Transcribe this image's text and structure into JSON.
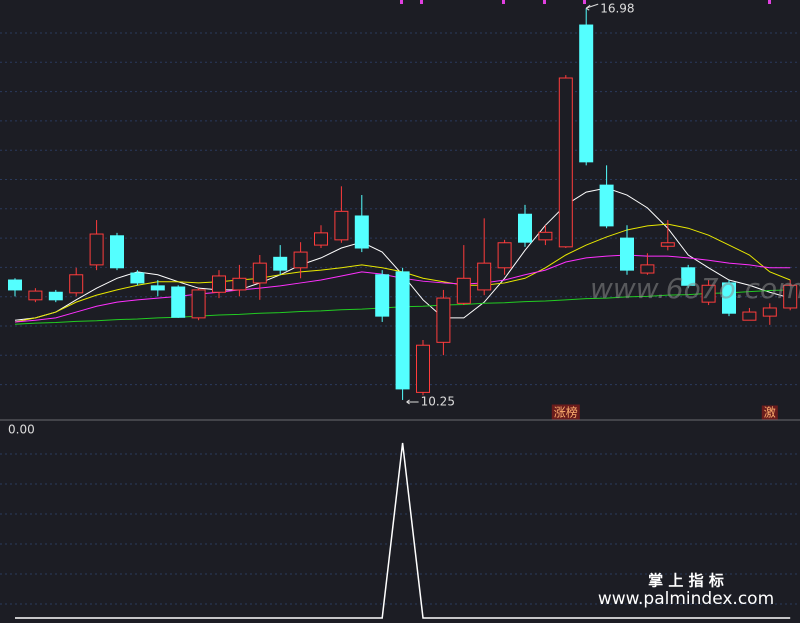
{
  "chart_data": [
    {
      "type": "candlestick",
      "ylim": [
        9.94,
        17.12
      ],
      "up_color": "#ff3c3c",
      "down_color": "#54ffff",
      "open": [
        12.31,
        11.97,
        12.1,
        12.09,
        12.57,
        13.07,
        12.43,
        12.21,
        12.19,
        11.66,
        12.1,
        12.14,
        12.26,
        12.7,
        12.52,
        12.91,
        13.0,
        13.41,
        12.4,
        12.45,
        10.38,
        11.24,
        11.91,
        12.14,
        12.52,
        13.44,
        13.0,
        12.88,
        16.69,
        13.94,
        13.03,
        12.43,
        12.89,
        12.52,
        11.93,
        12.26,
        11.62,
        11.69,
        11.83
      ],
      "high": [
        12.34,
        12.17,
        12.14,
        12.52,
        13.34,
        13.12,
        12.48,
        12.31,
        12.22,
        12.17,
        12.48,
        12.57,
        12.74,
        12.91,
        12.96,
        13.25,
        13.92,
        13.77,
        12.48,
        12.52,
        11.28,
        12.14,
        12.91,
        13.37,
        13.0,
        13.6,
        13.25,
        15.83,
        16.98,
        14.28,
        13.25,
        12.77,
        13.34,
        12.57,
        12.31,
        12.31,
        11.83,
        11.91,
        12.31
      ],
      "low": [
        12.03,
        11.93,
        11.93,
        12.03,
        12.48,
        12.48,
        12.22,
        12.03,
        11.66,
        11.62,
        12.0,
        12.03,
        11.97,
        12.4,
        12.34,
        12.86,
        12.95,
        12.79,
        11.59,
        10.25,
        10.33,
        11.02,
        11.88,
        12.05,
        12.4,
        12.88,
        12.91,
        12.86,
        14.28,
        13.2,
        12.4,
        12.4,
        12.82,
        12.17,
        11.88,
        11.69,
        11.62,
        11.54,
        11.79
      ],
      "close": [
        12.14,
        12.12,
        11.97,
        12.4,
        13.1,
        12.52,
        12.26,
        12.14,
        11.67,
        12.14,
        12.38,
        12.34,
        12.6,
        12.48,
        12.79,
        13.12,
        13.49,
        12.86,
        11.69,
        10.44,
        11.19,
        12.0,
        12.34,
        12.6,
        12.95,
        12.96,
        13.13,
        15.78,
        14.34,
        13.24,
        12.48,
        12.57,
        12.95,
        12.22,
        12.22,
        11.74,
        11.76,
        11.83,
        12.22
      ],
      "series": [
        {
          "color": "#ffffff",
          "values": [
            11.62,
            11.66,
            11.76,
            11.97,
            12.17,
            12.34,
            12.45,
            12.4,
            12.28,
            12.17,
            12.14,
            12.14,
            12.26,
            12.4,
            12.57,
            12.69,
            12.86,
            12.96,
            12.79,
            12.4,
            11.97,
            11.66,
            11.66,
            11.93,
            12.34,
            12.82,
            13.25,
            13.6,
            13.82,
            13.89,
            13.77,
            13.55,
            13.2,
            12.74,
            12.52,
            12.31,
            12.22,
            12.1,
            12.0
          ]
        },
        {
          "color": "#e8e800",
          "values": [
            11.59,
            11.66,
            11.76,
            11.93,
            12.05,
            12.14,
            12.22,
            12.28,
            12.28,
            12.26,
            12.28,
            12.31,
            12.34,
            12.4,
            12.45,
            12.48,
            12.52,
            12.57,
            12.52,
            12.45,
            12.34,
            12.28,
            12.22,
            12.22,
            12.26,
            12.34,
            12.52,
            12.74,
            12.91,
            13.05,
            13.17,
            13.24,
            13.27,
            13.2,
            13.08,
            12.91,
            12.74,
            12.45,
            12.31
          ]
        },
        {
          "color": "#ff30ff",
          "values": [
            11.59,
            11.62,
            11.66,
            11.76,
            11.86,
            11.93,
            11.97,
            12.0,
            12.03,
            12.07,
            12.1,
            12.14,
            12.17,
            12.21,
            12.26,
            12.31,
            12.38,
            12.45,
            12.41,
            12.34,
            12.29,
            12.26,
            12.24,
            12.26,
            12.31,
            12.4,
            12.48,
            12.62,
            12.69,
            12.72,
            12.74,
            12.72,
            12.72,
            12.69,
            12.65,
            12.6,
            12.57,
            12.52,
            12.52
          ]
        },
        {
          "color": "#22cc22",
          "values": [
            11.55,
            11.57,
            11.58,
            11.6,
            11.61,
            11.63,
            11.64,
            11.66,
            11.67,
            11.69,
            11.71,
            11.72,
            11.74,
            11.75,
            11.77,
            11.78,
            11.8,
            11.81,
            11.83,
            11.85,
            11.86,
            11.88,
            11.89,
            11.91,
            11.92,
            11.94,
            11.95,
            11.97,
            11.99,
            12.0,
            12.02,
            12.03,
            12.05,
            12.06,
            12.08,
            12.09,
            12.11,
            12.13,
            12.14
          ]
        }
      ],
      "max_label": "16.98",
      "min_label": "10.25",
      "bottom_tags": [
        null,
        null,
        null,
        null,
        null,
        null,
        null,
        null,
        null,
        null,
        null,
        null,
        null,
        null,
        null,
        null,
        null,
        null,
        null,
        null,
        null,
        null,
        null,
        null,
        null,
        null,
        null,
        "涨榜",
        null,
        null,
        null,
        null,
        null,
        null,
        null,
        null,
        null,
        "激",
        null
      ]
    },
    {
      "type": "line",
      "ylim": [
        0,
        1
      ],
      "color": "#ffffff",
      "values": [
        0,
        0,
        0,
        0,
        0,
        0,
        0,
        0,
        0,
        0,
        0,
        0,
        0,
        0,
        0,
        0,
        0,
        0,
        0,
        1,
        0,
        0,
        0,
        0,
        0,
        0,
        0,
        0,
        0,
        0,
        0,
        0,
        0,
        0,
        0,
        0,
        0,
        0,
        0
      ],
      "current_label": "0.00"
    }
  ],
  "watermarks": {
    "mid": "www.6o7o.com",
    "brand": "掌 上 指 标",
    "url": "www.palmindex.com"
  }
}
